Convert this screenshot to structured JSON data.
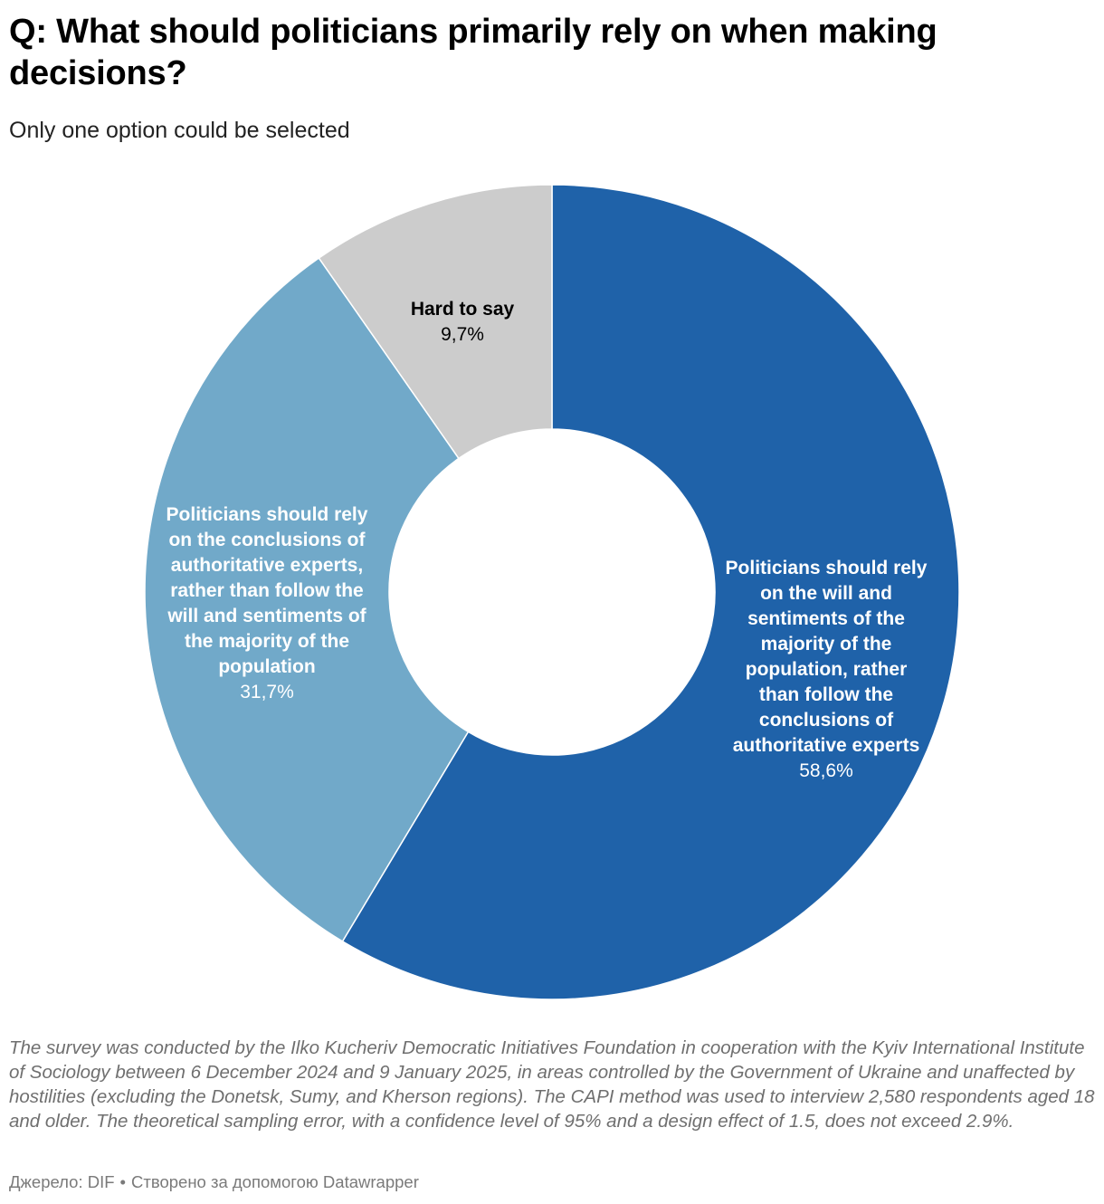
{
  "header": {
    "title": "Q: What should politicians primarily rely on when making decisions?",
    "subtitle": "Only one option could be selected"
  },
  "chart_data": {
    "type": "donut",
    "title": "Q: What should politicians primarily rely on when making decisions?",
    "subtitle": "Only one option could be selected",
    "unit": "%",
    "slices": [
      {
        "label_lines": [
          "Politicians should rely",
          "on the will and",
          "sentiments of the",
          "majority of the",
          "population, rather",
          "than follow the",
          "conclusions of",
          "authoritative experts"
        ],
        "value": 58.6,
        "value_label": "58,6%",
        "color": "#1f62a9",
        "text_color": "#ffffff"
      },
      {
        "label_lines": [
          "Politicians should rely",
          "on the conclusions of",
          "authoritative experts,",
          "rather than follow the",
          "will and sentiments of",
          "the majority of the",
          "population"
        ],
        "value": 31.7,
        "value_label": "31,7%",
        "color": "#71a9c9",
        "text_color": "#ffffff"
      },
      {
        "label_lines": [
          "Hard to say"
        ],
        "value": 9.7,
        "value_label": "9,7%",
        "color": "#cccccc",
        "text_color": "#000000"
      }
    ]
  },
  "footer": {
    "notes": "The survey was conducted by the Ilko Kucheriv Democratic Initiatives Foundation in cooperation with the Kyiv International Institute of Sociology between 6 December 2024 and 9 January 2025, in areas controlled by the Government of Ukraine and unaffected by hostilities (excluding the Donetsk, Sumy, and Kherson regions). The CAPI method was used to interview 2,580 respondents aged 18 and older. The theoretical sampling error, with a confidence level of 95% and a design effect of 1.5, does not exceed 2.9%.",
    "source": "Джерело: DIF",
    "separator": "•",
    "credit": "Створено за допомогою Datawrapper"
  }
}
